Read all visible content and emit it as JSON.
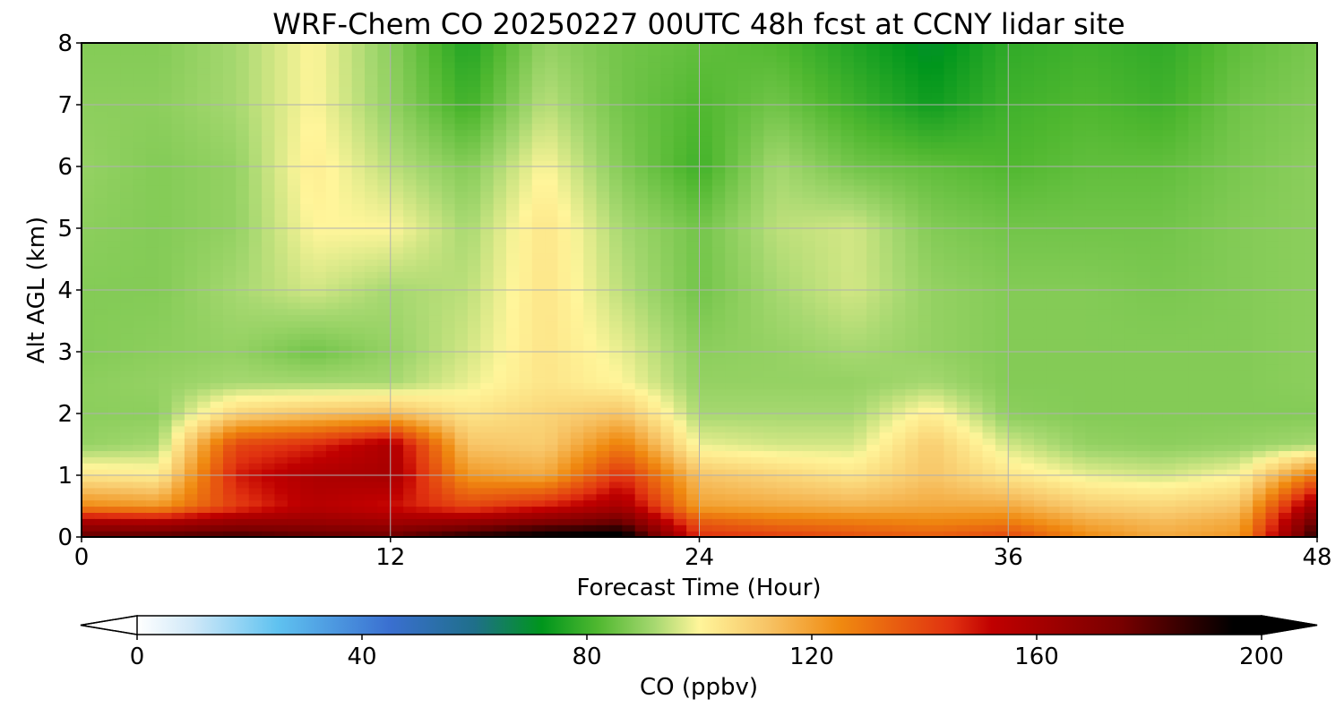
{
  "chart_data": {
    "type": "heatmap",
    "title": "WRF-Chem CO  20250227 00UTC 48h fcst at CCNY lidar site",
    "xlabel": "Forecast Time (Hour)",
    "ylabel": "Alt AGL (km)",
    "xlim": [
      0,
      48
    ],
    "ylim": [
      0,
      8
    ],
    "x_ticks": [
      "0",
      "12",
      "24",
      "36",
      "48"
    ],
    "y_ticks": [
      "0",
      "1",
      "2",
      "3",
      "4",
      "5",
      "6",
      "7",
      "8"
    ],
    "grid": true,
    "x_hours": [
      0,
      3,
      6,
      9,
      12,
      15,
      18,
      21,
      24,
      27,
      30,
      33,
      36,
      39,
      42,
      45,
      48
    ],
    "z_km": [
      0,
      0.25,
      0.5,
      1,
      1.5,
      2,
      2.5,
      3,
      4,
      5,
      6,
      7,
      8
    ],
    "co_ppbv": [
      [
        180,
        182,
        185,
        180,
        178,
        190,
        198,
        200,
        145,
        142,
        138,
        135,
        140,
        125,
        118,
        122,
        190
      ],
      [
        160,
        158,
        165,
        165,
        162,
        165,
        172,
        178,
        135,
        130,
        128,
        126,
        128,
        118,
        114,
        118,
        180
      ],
      [
        125,
        122,
        142,
        155,
        150,
        140,
        148,
        160,
        120,
        118,
        116,
        118,
        118,
        110,
        108,
        112,
        165
      ],
      [
        104,
        102,
        148,
        158,
        160,
        122,
        118,
        145,
        112,
        108,
        104,
        112,
        104,
        98,
        96,
        100,
        130
      ],
      [
        90,
        92,
        140,
        146,
        158,
        112,
        110,
        128,
        98,
        96,
        96,
        110,
        96,
        90,
        89,
        90,
        92
      ],
      [
        89,
        89,
        108,
        112,
        114,
        104,
        108,
        112,
        92,
        92,
        92,
        102,
        89,
        88,
        88,
        88,
        88
      ],
      [
        89,
        90,
        92,
        92,
        92,
        98,
        104,
        100,
        90,
        90,
        90,
        92,
        88,
        88,
        88,
        88,
        89
      ],
      [
        88,
        89,
        90,
        86,
        90,
        96,
        104,
        98,
        89,
        90,
        92,
        90,
        88,
        88,
        88,
        88,
        89
      ],
      [
        88,
        88,
        92,
        96,
        92,
        94,
        104,
        94,
        86,
        92,
        96,
        90,
        88,
        88,
        87,
        88,
        89
      ],
      [
        89,
        88,
        90,
        100,
        100,
        92,
        104,
        92,
        86,
        94,
        96,
        88,
        86,
        86,
        86,
        88,
        89
      ],
      [
        90,
        88,
        90,
        102,
        94,
        88,
        100,
        88,
        80,
        92,
        86,
        84,
        82,
        84,
        84,
        87,
        89
      ],
      [
        89,
        89,
        92,
        100,
        90,
        80,
        94,
        86,
        82,
        86,
        80,
        74,
        80,
        82,
        80,
        86,
        88
      ],
      [
        88,
        88,
        92,
        100,
        89,
        76,
        90,
        86,
        84,
        82,
        76,
        70,
        78,
        80,
        78,
        84,
        87
      ]
    ],
    "colorbar": {
      "label": "CO  (ppbv)",
      "min": 0,
      "max": 200,
      "ticks": [
        "0",
        "40",
        "80",
        "120",
        "160",
        "200"
      ],
      "extend": "both",
      "stops": [
        [
          0,
          "#ffffff"
        ],
        [
          10,
          "#cfe8f8"
        ],
        [
          25,
          "#5fc2f0"
        ],
        [
          45,
          "#3a6fd0"
        ],
        [
          60,
          "#1f6f8a"
        ],
        [
          72,
          "#00961c"
        ],
        [
          82,
          "#50b830"
        ],
        [
          92,
          "#a6d870"
        ],
        [
          100,
          "#fff59a"
        ],
        [
          112,
          "#f7c466"
        ],
        [
          125,
          "#f08a10"
        ],
        [
          145,
          "#e03010"
        ],
        [
          152,
          "#c00000"
        ],
        [
          175,
          "#780000"
        ],
        [
          195,
          "#000000"
        ],
        [
          200,
          "#000000"
        ]
      ]
    }
  }
}
